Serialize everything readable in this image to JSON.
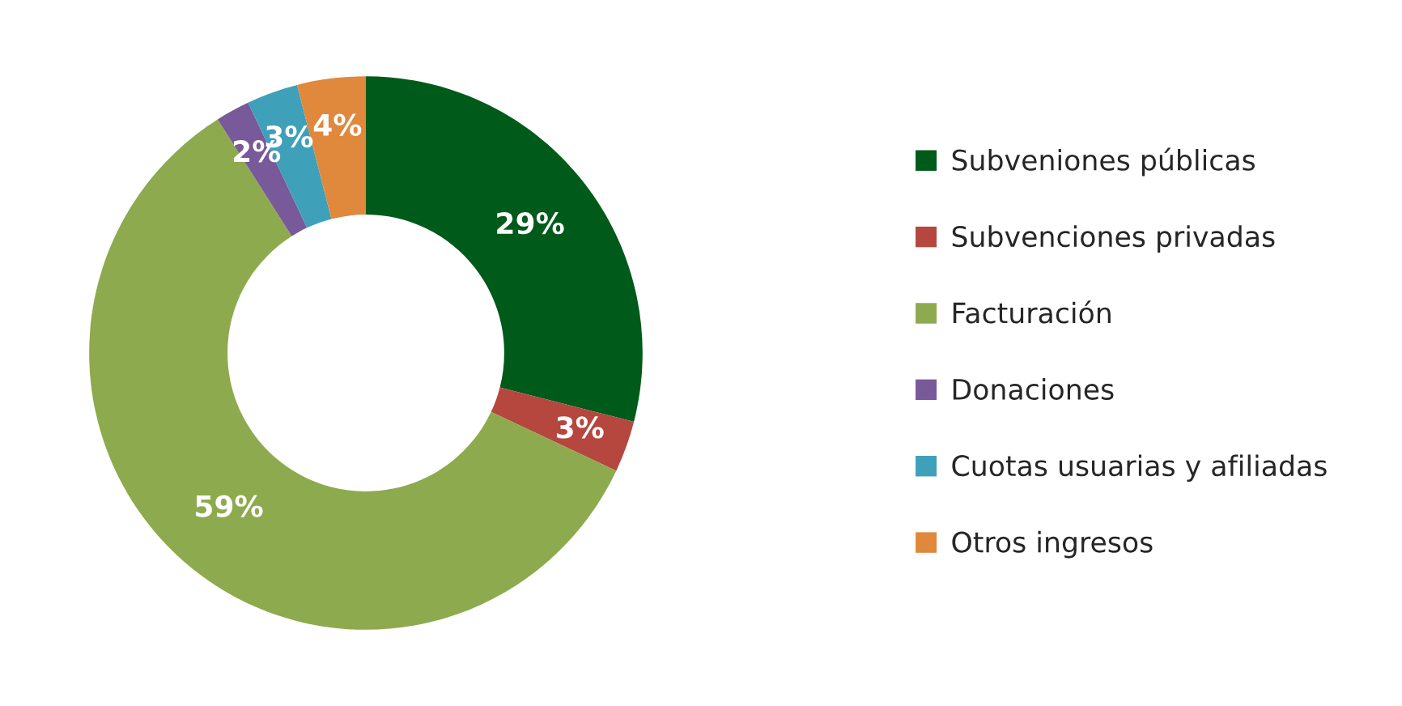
{
  "chart_data": {
    "type": "donut",
    "categories": [
      "Subveniones públicas",
      "Subvenciones privadas",
      "Facturación",
      "Donaciones",
      "Cuotas usuarias y afiliadas",
      "Otros ingresos"
    ],
    "values": [
      29,
      3,
      59,
      2,
      3,
      4
    ],
    "colors": [
      "#005a1a",
      "#b5473f",
      "#8eaa4e",
      "#78599a",
      "#3fa0ba",
      "#e0883c"
    ],
    "value_labels": [
      "29%",
      "3%",
      "59%",
      "2%",
      "3%",
      "4%"
    ],
    "legend": "right"
  }
}
